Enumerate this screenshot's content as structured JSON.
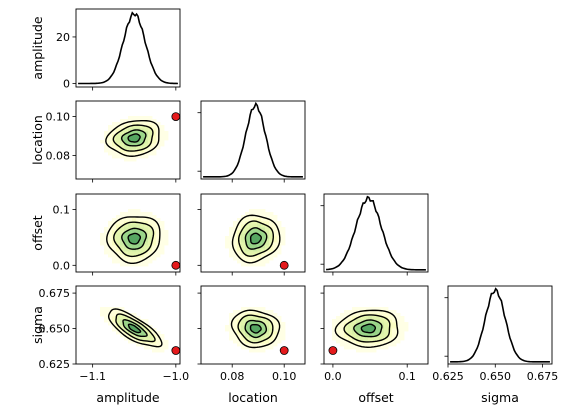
{
  "chart_data": {
    "type": "corner",
    "parameters": [
      {
        "name": "amplitude",
        "range": [
          -1.12,
          -0.995
        ],
        "ticks": [
          -1.1,
          -1.0
        ],
        "tick_labels": [
          "−1.1",
          "−1.0"
        ]
      },
      {
        "name": "location",
        "range": [
          0.068,
          0.108
        ],
        "ticks": [
          0.08,
          0.1
        ],
        "tick_labels": [
          "0.08",
          "0.10"
        ]
      },
      {
        "name": "offset",
        "range": [
          -0.012,
          0.128
        ],
        "ticks": [
          0.0,
          0.1
        ],
        "tick_labels": [
          "0.0",
          "0.1"
        ]
      },
      {
        "name": "sigma",
        "range": [
          0.625,
          0.68
        ],
        "ticks": [
          0.625,
          0.65,
          0.675
        ],
        "tick_labels": [
          "0.625",
          "0.650",
          "0.675"
        ]
      }
    ],
    "posterior_mean": [
      -1.05,
      0.089,
      0.048,
      0.65
    ],
    "posterior_sd": [
      0.013,
      0.0037,
      0.017,
      0.0053
    ],
    "correlations": [
      [
        1.0,
        0.15,
        0.05,
        -0.75
      ],
      [
        0.15,
        1.0,
        0.1,
        -0.1
      ],
      [
        0.05,
        0.1,
        1.0,
        0.05
      ],
      [
        -0.75,
        -0.1,
        0.05,
        1.0
      ]
    ],
    "truth": [
      -1.0,
      0.1,
      0.0,
      0.6345
    ],
    "marginal_peak_y": 30,
    "diag0_yrange": [
      -1.5,
      32
    ],
    "diag0_ticks": [
      0,
      20
    ],
    "colors": {
      "line": "#000000",
      "truth_marker": "#e41a1c",
      "cmap": [
        "#ffffe5",
        "#f7fcb9",
        "#d9f0a3",
        "#addd8e",
        "#78c679",
        "#41ab5d",
        "#238443",
        "#006837"
      ]
    }
  }
}
